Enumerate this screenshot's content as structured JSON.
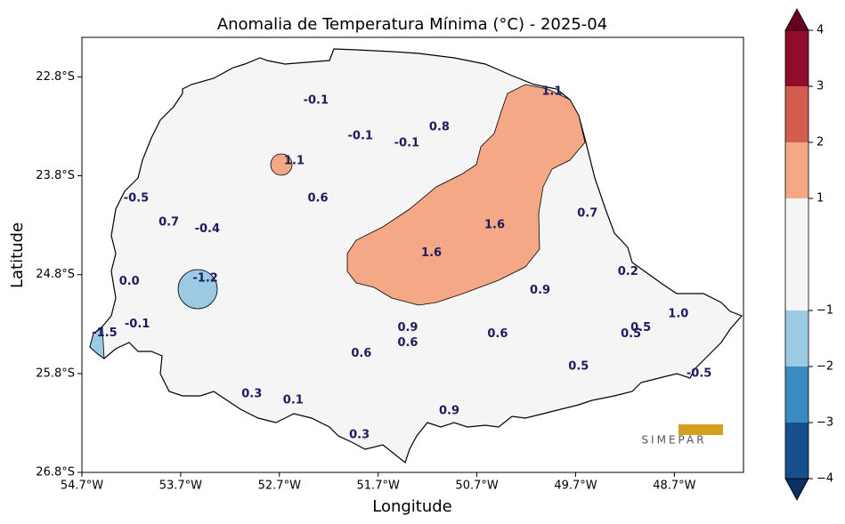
{
  "chart_data": {
    "type": "map",
    "title": "Anomalia de Temperatura Mínima (°C) - 2025-04",
    "x_label": "Longitude",
    "y_label": "Latitude",
    "logo": "SIMEPAR",
    "xlim": [
      -54.7,
      -48.0
    ],
    "ylim": [
      -26.8,
      -22.4
    ],
    "xticks": [
      {
        "value": -54.7,
        "label": "54.7°W"
      },
      {
        "value": -53.7,
        "label": "53.7°W"
      },
      {
        "value": -52.7,
        "label": "52.7°W"
      },
      {
        "value": -51.7,
        "label": "51.7°W"
      },
      {
        "value": -50.7,
        "label": "50.7°W"
      },
      {
        "value": -49.7,
        "label": "49.7°W"
      },
      {
        "value": -48.7,
        "label": "48.7°W"
      }
    ],
    "yticks": [
      {
        "value": -22.8,
        "label": "22.8°S"
      },
      {
        "value": -23.8,
        "label": "23.8°S"
      },
      {
        "value": -24.8,
        "label": "24.8°S"
      },
      {
        "value": -25.8,
        "label": "25.8°S"
      },
      {
        "value": -26.8,
        "label": "26.8°S"
      }
    ],
    "colorbar": {
      "bounds": [
        -4,
        -3,
        -2,
        -1,
        1,
        2,
        3,
        4
      ],
      "colors": [
        "#164f8c",
        "#3b8bc2",
        "#9ccae2",
        "#f5f5f5",
        "#f4a886",
        "#d35d4c",
        "#900c2a"
      ],
      "under_color": "#0a2f60",
      "over_color": "#67001f",
      "ticks": [
        {
          "value": -4,
          "label": "−4"
        },
        {
          "value": -3,
          "label": "−3"
        },
        {
          "value": -2,
          "label": "−2"
        },
        {
          "value": -1,
          "label": "−1"
        },
        1,
        2,
        3,
        4
      ]
    },
    "stations": {
      "lon": [
        -52.33,
        -49.94,
        -51.88,
        -51.41,
        -51.08,
        -52.55,
        -52.31,
        -54.15,
        -53.82,
        -53.43,
        -50.52,
        -49.58,
        -51.16,
        -54.22,
        -53.45,
        -49.17,
        -50.06,
        -48.66,
        -54.14,
        -54.47,
        -51.4,
        -51.4,
        -50.49,
        -49.04,
        -49.14,
        -51.87,
        -49.67,
        -48.45,
        -52.98,
        -52.56,
        -50.98,
        -51.89
      ],
      "lat": [
        -23.04,
        -22.95,
        -23.4,
        -23.47,
        -23.31,
        -23.65,
        -24.03,
        -24.03,
        -24.27,
        -24.34,
        -24.3,
        -24.18,
        -24.58,
        -24.87,
        -24.84,
        -24.77,
        -24.96,
        -25.2,
        -25.3,
        -25.39,
        -25.34,
        -25.49,
        -25.4,
        -25.34,
        -25.4,
        -25.6,
        -25.73,
        -25.8,
        -26.01,
        -26.07,
        -26.18,
        -26.42
      ],
      "values": [
        -0.1,
        1.1,
        -0.1,
        -0.1,
        0.8,
        1.1,
        0.6,
        -0.5,
        0.7,
        -0.4,
        1.6,
        0.7,
        1.6,
        0.0,
        -1.2,
        0.2,
        0.9,
        1.0,
        -0.1,
        -1.5,
        0.9,
        0.6,
        0.6,
        0.5,
        0.5,
        0.6,
        0.5,
        -0.5,
        0.3,
        0.1,
        0.9,
        0.3
      ],
      "value_labels": [
        "-0.1",
        "1.1",
        "-0.1",
        "-0.1",
        "0.8",
        "1.1",
        "0.6",
        "-0.5",
        "0.7",
        "-0.4",
        "1.6",
        "0.7",
        "1.6",
        "0.0",
        "-1.2",
        "0.2",
        "0.9",
        "1.0",
        "-0.1",
        "-1.5",
        "0.9",
        "0.6",
        "0.6",
        "0.5",
        "0.5",
        "0.6",
        "0.5",
        "-0.5",
        "0.3",
        "0.1",
        "0.9",
        "0.3"
      ]
    }
  }
}
